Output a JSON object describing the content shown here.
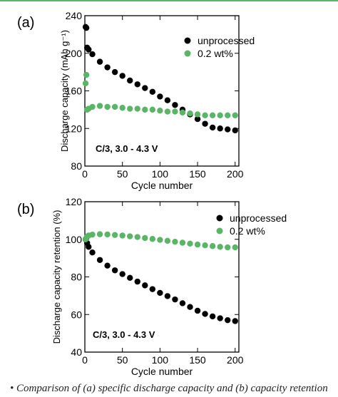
{
  "chart_data": [
    {
      "type": "scatter",
      "panel_label": "(a)",
      "xlabel": "Cycle number",
      "ylabel": "Discharge capacity (mAh g⁻¹)",
      "xlim": [
        0,
        205
      ],
      "ylim": [
        80,
        240
      ],
      "xticks": [
        0,
        50,
        100,
        150,
        200
      ],
      "yticks": [
        80,
        120,
        160,
        200,
        240
      ],
      "xtick_labels": [
        "0",
        "50",
        "100",
        "150",
        "200"
      ],
      "ytick_labels": [
        "80",
        "120",
        "160",
        "200",
        "240"
      ],
      "annotation": "C/3, 3.0 - 4.3 V",
      "legend_position": "top-right",
      "grid": false,
      "series": [
        {
          "name": "unprocessed",
          "color": "#000000",
          "x": [
            1,
            2,
            3,
            5,
            10,
            20,
            30,
            40,
            50,
            60,
            70,
            80,
            90,
            100,
            110,
            120,
            130,
            140,
            150,
            160,
            170,
            180,
            190,
            200
          ],
          "y": [
            228,
            227,
            206,
            204,
            199,
            191,
            185,
            180,
            176,
            171,
            167,
            163,
            159,
            154,
            150,
            145,
            140,
            135,
            130,
            125,
            121,
            120,
            119,
            118
          ]
        },
        {
          "name": "0.2 wt%",
          "color": "#5ab567",
          "x": [
            1,
            2,
            3,
            5,
            10,
            20,
            30,
            40,
            50,
            60,
            70,
            80,
            90,
            100,
            110,
            120,
            130,
            140,
            150,
            160,
            170,
            180,
            190,
            200
          ],
          "y": [
            168,
            177,
            140,
            141,
            143,
            144,
            143,
            143,
            142,
            141,
            141,
            140,
            140,
            139,
            138,
            138,
            137,
            136,
            135,
            134,
            134,
            134,
            134,
            134
          ]
        }
      ]
    },
    {
      "type": "scatter",
      "panel_label": "(b)",
      "xlabel": "Cycle number",
      "ylabel": "Discharge capacity retention (%)",
      "xlim": [
        0,
        205
      ],
      "ylim": [
        40,
        120
      ],
      "xticks": [
        0,
        50,
        100,
        150,
        200
      ],
      "yticks": [
        40,
        60,
        80,
        100,
        120
      ],
      "xtick_labels": [
        "0",
        "50",
        "100",
        "150",
        "200"
      ],
      "ytick_labels": [
        "40",
        "60",
        "80",
        "100",
        "120"
      ],
      "annotation": "C/3, 3.0 - 4.3 V",
      "legend_position": "top-right",
      "grid": false,
      "series": [
        {
          "name": "unprocessed",
          "color": "#000000",
          "x": [
            1,
            3,
            5,
            10,
            20,
            30,
            40,
            50,
            60,
            70,
            80,
            90,
            100,
            110,
            120,
            130,
            140,
            150,
            160,
            170,
            180,
            190,
            200
          ],
          "y": [
            100,
            98,
            96,
            93,
            89,
            86,
            83.5,
            81.5,
            79.5,
            77.5,
            75.5,
            73.5,
            71.5,
            69.8,
            68,
            66,
            64,
            62,
            60.3,
            59,
            58,
            57,
            56.5
          ]
        },
        {
          "name": "0.2 wt%",
          "color": "#5ab567",
          "x": [
            1,
            3,
            5,
            10,
            20,
            30,
            40,
            50,
            60,
            70,
            80,
            90,
            100,
            110,
            120,
            130,
            140,
            150,
            160,
            170,
            180,
            190,
            200
          ],
          "y": [
            100,
            101.5,
            102,
            102.5,
            102.7,
            102.6,
            102.3,
            102,
            101.6,
            101.2,
            100.7,
            100.2,
            99.7,
            99.2,
            98.7,
            98.2,
            97.7,
            97.2,
            96.8,
            96.4,
            96,
            95.7,
            95.7
          ]
        }
      ]
    }
  ],
  "caption": "•  Comparison of (a) specific discharge capacity and (b) capacity retention"
}
